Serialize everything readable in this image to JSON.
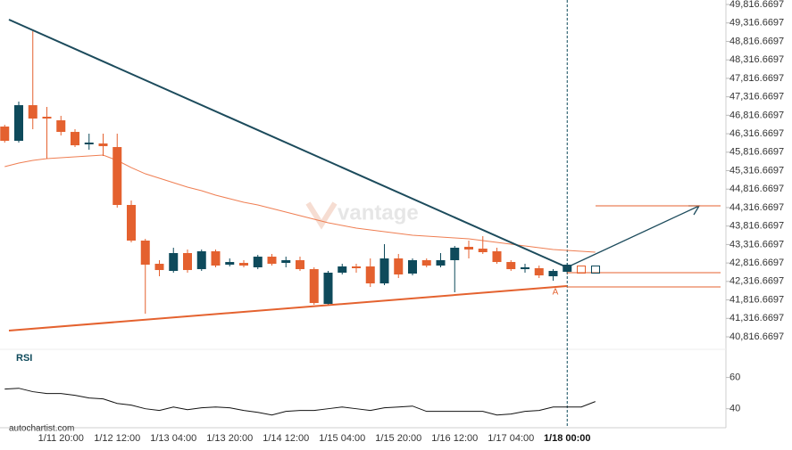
{
  "chart_data": {
    "type": "candlestick",
    "categories": [
      null,
      null,
      null,
      null,
      "1/11 20:00",
      null,
      null,
      null,
      "1/12 12:00",
      null,
      null,
      null,
      "1/13 04:00",
      null,
      null,
      null,
      "1/13 20:00",
      null,
      null,
      null,
      "1/14 12:00",
      null,
      null,
      null,
      "1/15 04:00",
      null,
      null,
      null,
      "1/15 20:00",
      null,
      null,
      null,
      "1/16 12:00",
      null,
      null,
      null,
      "1/17 04:00",
      null,
      null,
      null,
      "1/18 00:00",
      null,
      null
    ],
    "open": [
      46511,
      46125,
      47090,
      46777,
      46680,
      46366,
      46029,
      46053,
      45956,
      44388,
      43423,
      42795,
      42602,
      43085,
      42650,
      43133,
      42771,
      42819,
      42699,
      42988,
      42819,
      42892,
      42650,
      41709,
      42554,
      42723,
      42723,
      42264,
      42940,
      42530,
      42892,
      42747,
      42892,
      43254,
      43205,
      43133,
      42843,
      42650,
      42675,
      42457,
      42578,
      null,
      null
    ],
    "high": [
      46559,
      47187,
      49093,
      47042,
      46801,
      46439,
      46318,
      46318,
      46318,
      44508,
      43471,
      42892,
      43230,
      43181,
      43181,
      43181,
      42940,
      42892,
      43036,
      43061,
      42988,
      42988,
      42699,
      42602,
      42795,
      42795,
      42940,
      43326,
      43061,
      42940,
      42940,
      43085,
      43278,
      43423,
      43543,
      43230,
      42892,
      42795,
      42747,
      42650,
      42819,
      null,
      null
    ],
    "low": [
      46077,
      46077,
      46439,
      45643,
      46270,
      45956,
      45884,
      45715,
      44315,
      43374,
      41444,
      42457,
      42554,
      42554,
      42602,
      42699,
      42723,
      42699,
      42650,
      42747,
      42699,
      42602,
      41685,
      41661,
      42506,
      42554,
      42168,
      42216,
      42409,
      42481,
      42699,
      42699,
      42023,
      42940,
      43061,
      42795,
      42602,
      42554,
      42409,
      42337,
      42530,
      null,
      null
    ],
    "close": [
      46125,
      47090,
      46728,
      46728,
      46366,
      46004,
      46077,
      45980,
      44388,
      43423,
      42771,
      42626,
      43085,
      42626,
      43133,
      42747,
      42843,
      42747,
      42988,
      42795,
      42892,
      42650,
      41733,
      42554,
      42723,
      42675,
      42264,
      42940,
      42506,
      42892,
      42747,
      42892,
      43230,
      43181,
      43109,
      42843,
      42650,
      42699,
      42481,
      42602,
      42771,
      null,
      null
    ],
    "up_color": "#0e4a5b",
    "down_color": "#e4612f",
    "ma": [
      45425,
      45522,
      45594,
      45643,
      45667,
      45691,
      45715,
      45739,
      45594,
      45401,
      45232,
      45112,
      44991,
      44870,
      44774,
      44653,
      44557,
      44460,
      44388,
      44291,
      44195,
      44098,
      44002,
      43905,
      43833,
      43760,
      43712,
      43664,
      43616,
      43567,
      43543,
      43519,
      43495,
      43471,
      43423,
      43374,
      43326,
      43278,
      43230,
      43181,
      43157,
      43133,
      43109
    ],
    "ma_color": "#ef7e52",
    "ylim": [
      40479,
      49938
    ],
    "yticks": [
      {
        "value": 49816.6697,
        "label": "49,816.6697"
      },
      {
        "value": 49316.6697,
        "label": "49,316.6697"
      },
      {
        "value": 48816.6697,
        "label": "48,816.6697"
      },
      {
        "value": 48316.6697,
        "label": "48,316.6697"
      },
      {
        "value": 47816.6697,
        "label": "47,816.6697"
      },
      {
        "value": 47316.6697,
        "label": "47,316.6697"
      },
      {
        "value": 46816.6697,
        "label": "46,816.6697"
      },
      {
        "value": 46316.6697,
        "label": "46,316.6697"
      },
      {
        "value": 45816.6697,
        "label": "45,816.6697"
      },
      {
        "value": 45316.6697,
        "label": "45,316.6697"
      },
      {
        "value": 44816.6697,
        "label": "44,816.6697"
      },
      {
        "value": 44316.6697,
        "label": "44,316.6697"
      },
      {
        "value": 43816.6697,
        "label": "43,816.6697"
      },
      {
        "value": 43316.6697,
        "label": "43,316.6697"
      },
      {
        "value": 42816.6697,
        "label": "42,816.6697"
      },
      {
        "value": 42316.6697,
        "label": "42,316.6697"
      },
      {
        "value": 41816.6697,
        "label": "41,816.6697"
      },
      {
        "value": 41316.6697,
        "label": "41,316.6697"
      },
      {
        "value": 40816.6697,
        "label": "40,816.6697"
      }
    ],
    "rsi": {
      "label": "RSI",
      "color": "#111111",
      "values": [
        52.6,
        53.1,
        50.9,
        49.7,
        49.7,
        48.6,
        46.9,
        46.3,
        43.4,
        42.3,
        40,
        38.9,
        41.1,
        39.4,
        40.6,
        41.1,
        40.6,
        38.9,
        37.7,
        36,
        38.3,
        38.9,
        38.9,
        40,
        41.1,
        40,
        38.9,
        40.6,
        41.1,
        41.7,
        38.3,
        38.3,
        38.3,
        38.3,
        38.3,
        36,
        36.6,
        38.3,
        38.9,
        41.1,
        41.1,
        41.1,
        44.6
      ],
      "ylim": [
        29,
        78
      ],
      "yticks": [
        60,
        40
      ]
    },
    "annotation": "A",
    "watermark": "vantage",
    "source": "autochartist.com"
  }
}
